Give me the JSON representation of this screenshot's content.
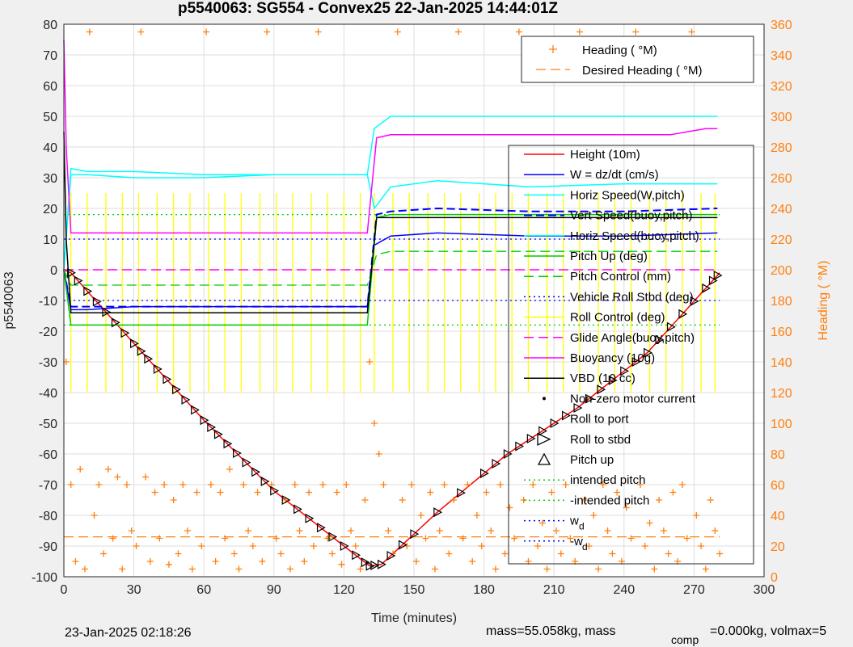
{
  "title": "p5540063: SG554 - Convex25 22-Jan-2025 14:44:01Z",
  "footer": {
    "timestamp": "23-Jan-2025 02:18:26",
    "mass_text": "mass=55.058kg, mass",
    "mass_sub": "comp",
    "mass_rest": "=0.000kg, volmax=5"
  },
  "colors": {
    "heading": "#ff7f0e",
    "height": "#ff0000",
    "w": "#0000ff",
    "horiz": "#00ffff",
    "vert": "#0000ff",
    "pitch": "#00cc00",
    "pitch_control": "#00cc00",
    "roll": "#0000ff",
    "roll_control": "#ffff00",
    "glide": "#ff00ff",
    "buoyancy": "#ff00ff",
    "vbd": "#000000",
    "markers": "#000000"
  },
  "chart_data": {
    "type": "line",
    "title": "p5540063: SG554 - Convex25 22-Jan-2025 14:44:01Z",
    "xlabel": "Time (minutes)",
    "ylabel": "p5540063",
    "ylabel_right": "Heading (  °M)",
    "xlim": [
      0,
      300
    ],
    "ylim": [
      -100,
      80
    ],
    "ylim_right": [
      0,
      360
    ],
    "xticks": [
      "0",
      "30",
      "60",
      "90",
      "120",
      "150",
      "180",
      "210",
      "240",
      "270",
      "300"
    ],
    "yticks": [
      "80",
      "70",
      "60",
      "50",
      "40",
      "30",
      "20",
      "10",
      "0",
      "-10",
      "-20",
      "-30",
      "-40",
      "-50",
      "-60",
      "-70",
      "-80",
      "-90",
      "-100"
    ],
    "yticks_right": [
      "360",
      "340",
      "320",
      "300",
      "280",
      "260",
      "240",
      "220",
      "200",
      "180",
      "160",
      "140",
      "120",
      "100",
      "80",
      "60",
      "40",
      "20",
      "0"
    ],
    "grid": true,
    "legend_heading": [
      "Heading (  °M)",
      "Desired Heading (   °M)"
    ],
    "legend_main": [
      "Height (10m)",
      "W = dz/dt (cm/s)",
      "Horiz Speed(W,pitch)",
      "Vert Speed(buoy,pitch)",
      "Horiz Speed(buoy,pitch)",
      "Pitch Up (deg)",
      "Pitch Control (mm)",
      "Vehicle Roll Stbd (deg)",
      "Roll Control (deg)",
      "Glide Angle(buoy,pitch)",
      "Buoyancy (10g)",
      "VBD (10 cc)",
      "Non-zero motor current",
      "Roll to port",
      "Roll to stbd",
      "Pitch up",
      "intended pitch",
      "-intended pitch",
      "w",
      "-w"
    ],
    "legend_sub": "d",
    "series": [
      {
        "name": "Height (10m)",
        "x": [
          0,
          3,
          30,
          60,
          90,
          120,
          131,
          136,
          160,
          190,
          220,
          250,
          281
        ],
        "values": [
          0,
          -1,
          -24,
          -49,
          -72,
          -90,
          -96.5,
          -96,
          -79,
          -60,
          -45,
          -27,
          -1
        ]
      },
      {
        "name": "W = dz/dt (cm/s)",
        "x": [
          0,
          3,
          10,
          30,
          60,
          90,
          130,
          133,
          140,
          160,
          200,
          240,
          280
        ],
        "values": [
          0,
          -13,
          -13,
          -12,
          -12,
          -12,
          -12,
          8,
          11,
          12,
          11,
          11,
          12
        ]
      },
      {
        "name": "Horiz Speed(W,pitch)",
        "x": [
          0,
          3,
          10,
          30,
          60,
          90,
          130,
          133,
          140,
          160,
          200,
          240,
          280
        ],
        "values": [
          0,
          31,
          31,
          30,
          30,
          31,
          31,
          20,
          27,
          29,
          27,
          28,
          28
        ]
      },
      {
        "name": "Vert Speed(buoy,pitch)",
        "x": [
          0,
          3,
          10,
          30,
          60,
          90,
          130,
          134,
          140,
          160,
          200,
          240,
          280
        ],
        "values": [
          0,
          -12,
          -12,
          -12,
          -12,
          -12,
          -12,
          18,
          19,
          20,
          19,
          19,
          20
        ]
      },
      {
        "name": "Horiz Speed(buoy,pitch)",
        "x": [
          0,
          3,
          10,
          30,
          60,
          90,
          130,
          133,
          140,
          160,
          200,
          240,
          280
        ],
        "values": [
          0,
          33,
          32,
          32,
          31,
          31,
          31,
          46,
          50,
          50,
          50,
          50,
          50
        ]
      },
      {
        "name": "Pitch Up (deg)",
        "x": [
          0,
          3,
          10,
          30,
          60,
          90,
          130,
          134,
          140,
          160,
          200,
          240,
          280
        ],
        "values": [
          0,
          -18,
          -18,
          -18,
          -18,
          -18,
          -18,
          17,
          18,
          18,
          18,
          18,
          18
        ]
      },
      {
        "name": "Pitch Control (mm)",
        "x": [
          0,
          3,
          10,
          30,
          60,
          90,
          130,
          134,
          140,
          160,
          200,
          240,
          280
        ],
        "values": [
          0,
          -5,
          -5,
          -5,
          -5,
          -5,
          -5,
          5,
          6,
          6,
          6,
          6,
          6
        ]
      },
      {
        "name": "Glide Angle(buoy,pitch)",
        "x": [
          0,
          3,
          30,
          60,
          90,
          130,
          133,
          140,
          200,
          280
        ],
        "values": [
          0,
          0,
          0,
          0,
          0,
          0,
          0,
          0,
          0,
          0
        ]
      },
      {
        "name": "Buoyancy (10g)",
        "x": [
          0,
          1,
          3,
          10,
          30,
          60,
          90,
          130,
          134,
          140,
          180,
          220,
          260,
          275,
          280
        ],
        "values": [
          75,
          40,
          12,
          12,
          12,
          12,
          12,
          12,
          43,
          44,
          44,
          44,
          44,
          46,
          46
        ]
      },
      {
        "name": "VBD (10 cc)",
        "x": [
          0,
          1,
          3,
          10,
          30,
          60,
          90,
          130,
          134,
          140,
          180,
          220,
          260,
          280
        ],
        "values": [
          45,
          10,
          -14,
          -14,
          -14,
          -14,
          -14,
          -14,
          17,
          17,
          17,
          17,
          17,
          17
        ]
      },
      {
        "name": "intended pitch",
        "x": [
          0,
          281
        ],
        "values": [
          18,
          18
        ]
      },
      {
        "name": "-intended pitch",
        "x": [
          0,
          281
        ],
        "values": [
          -18,
          -18
        ]
      },
      {
        "name": "w",
        "x": [
          0,
          281
        ],
        "values": [
          10,
          10
        ]
      },
      {
        "name": "-w",
        "x": [
          0,
          281
        ],
        "values": [
          -10,
          -10
        ]
      }
    ],
    "roll_control_pulses_x": [
      3,
      10,
      18,
      25,
      32,
      40,
      47,
      54,
      62,
      69,
      76,
      84,
      91,
      98,
      106,
      113,
      120,
      127,
      133,
      141,
      148,
      156,
      163,
      170,
      178,
      185,
      192,
      199,
      207,
      214,
      221,
      229,
      236,
      243,
      251,
      258,
      265,
      273,
      279
    ],
    "heading_desired": 26,
    "heading_samples_x": [
      1,
      3,
      5,
      7,
      9,
      11,
      13,
      15,
      17,
      19,
      21,
      23,
      25,
      27,
      29,
      31,
      33,
      35,
      37,
      39,
      41,
      43,
      45,
      47,
      49,
      51,
      53,
      55,
      57,
      59,
      61,
      63,
      65,
      67,
      69,
      71,
      73,
      75,
      77,
      79,
      81,
      83,
      85,
      87,
      89,
      91,
      93,
      95,
      97,
      99,
      101,
      103,
      105,
      107,
      109,
      111,
      113,
      115,
      117,
      119,
      121,
      123,
      125,
      127,
      129,
      131,
      133,
      135,
      137,
      139,
      141,
      143,
      145,
      147,
      149,
      151,
      153,
      155,
      157,
      159,
      161,
      163,
      165,
      167,
      169,
      171,
      173,
      175,
      177,
      179,
      181,
      183,
      185,
      187,
      189,
      191,
      193,
      195,
      197,
      199,
      201,
      203,
      205,
      207,
      209,
      211,
      213,
      215,
      217,
      219,
      221,
      223,
      225,
      227,
      229,
      231,
      233,
      235,
      237,
      239,
      241,
      243,
      245,
      247,
      249,
      251,
      253,
      255,
      257,
      259,
      261,
      263,
      265,
      267,
      269,
      271,
      273,
      275,
      277,
      279,
      281
    ],
    "heading_samples_y": [
      140,
      60,
      10,
      70,
      5,
      355,
      40,
      60,
      15,
      70,
      25,
      65,
      5,
      60,
      30,
      20,
      355,
      65,
      10,
      55,
      25,
      60,
      8,
      50,
      15,
      60,
      30,
      5,
      55,
      20,
      355,
      60,
      10,
      55,
      25,
      70,
      15,
      5,
      60,
      30,
      20,
      55,
      10,
      355,
      60,
      25,
      15,
      50,
      5,
      60,
      30,
      10,
      55,
      20,
      355,
      60,
      25,
      15,
      55,
      8,
      60,
      30,
      20,
      5,
      50,
      140,
      100,
      80,
      60,
      30,
      15,
      355,
      50,
      20,
      60,
      10,
      40,
      25,
      55,
      5,
      30,
      60,
      15,
      50,
      355,
      25,
      60,
      10,
      40,
      20,
      55,
      30,
      5,
      60,
      15,
      45,
      25,
      355,
      50,
      10,
      60,
      20,
      35,
      5,
      55,
      30,
      15,
      60,
      25,
      10,
      355,
      50,
      20,
      40,
      5,
      60,
      30,
      15,
      55,
      10,
      45,
      25,
      355,
      60,
      20,
      35,
      5,
      50,
      30,
      15,
      55,
      10,
      60,
      25,
      355,
      40,
      20,
      5,
      50,
      30,
      15
    ],
    "marker_x": [
      3,
      6,
      10,
      14,
      18,
      22,
      26,
      30,
      33,
      36,
      40,
      44,
      48,
      52,
      56,
      60,
      63,
      66,
      70,
      74,
      78,
      82,
      86,
      90,
      95,
      100,
      105,
      110,
      115,
      120,
      125,
      129,
      131,
      133,
      136,
      140,
      145,
      150,
      160,
      170,
      180,
      185,
      190,
      195,
      200,
      205,
      210,
      215,
      220,
      225,
      230,
      235,
      240,
      245,
      250,
      255,
      260,
      265,
      270,
      275,
      278,
      280
    ]
  }
}
